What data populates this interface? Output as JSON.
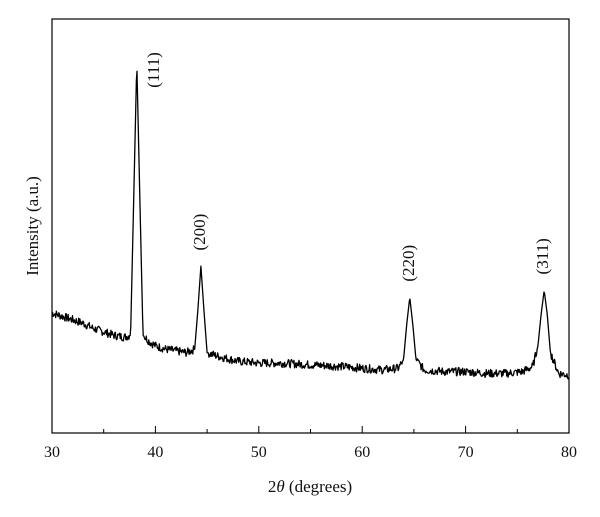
{
  "chart_data": {
    "type": "line",
    "xlabel": "2θ (degrees)",
    "ylabel": "Intensity (a.u.)",
    "xlim": [
      30,
      80
    ],
    "ylim": [
      0,
      100
    ],
    "x_ticks": [
      30,
      40,
      50,
      60,
      70,
      80
    ],
    "x_tick_labels": [
      "30",
      "40",
      "50",
      "60",
      "70",
      "80"
    ],
    "y_ticks_labeled": false,
    "grid": false,
    "legend": "none",
    "line_color": "#000000",
    "peaks": [
      {
        "label": "(111)",
        "x": 38.2,
        "y": 100
      },
      {
        "label": "(200)",
        "x": 44.4,
        "y": 41
      },
      {
        "label": "(220)",
        "x": 64.6,
        "y": 32
      },
      {
        "label": "(311)",
        "x": 77.6,
        "y": 34
      }
    ],
    "series": [
      {
        "x": [
          30,
          31,
          32,
          33,
          34,
          35,
          36,
          37,
          37.6,
          37.9,
          38.2,
          38.5,
          38.8,
          39.5,
          40,
          41,
          42,
          43,
          43.8,
          44.1,
          44.4,
          44.7,
          45,
          46,
          48,
          50,
          52,
          55,
          58,
          60,
          62,
          63.5,
          64,
          64.3,
          64.6,
          64.9,
          65.2,
          66,
          68,
          70,
          72,
          74,
          75.5,
          76.5,
          77,
          77.3,
          77.6,
          77.9,
          78.2,
          79,
          80
        ],
        "y": [
          27.5,
          26.5,
          25.5,
          24.5,
          23,
          22,
          21,
          20.5,
          21,
          60,
          100,
          60,
          21,
          19,
          18,
          17,
          16.5,
          16,
          17,
          28,
          41,
          28,
          16,
          15,
          13.5,
          13,
          13,
          12.5,
          12,
          11.5,
          11,
          11.5,
          14,
          24,
          32,
          24,
          14,
          11,
          10.5,
          10.5,
          10,
          10,
          10.5,
          12,
          18,
          27,
          34,
          27,
          16,
          10,
          9.5
        ]
      }
    ]
  }
}
